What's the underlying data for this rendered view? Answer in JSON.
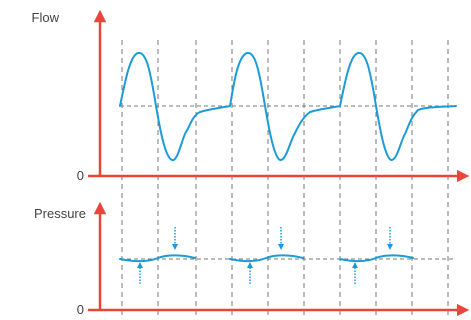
{
  "labels": {
    "flow_axis": "Flow",
    "flow_zero": "0",
    "pressure_axis": "Pressure",
    "pressure_zero": "0"
  },
  "colors": {
    "axis": "#e8463a",
    "waveform": "#1b9bd7",
    "grid": "#7a7a7a",
    "text": "#444444"
  },
  "icons": {
    "pressure_markers": "dotted-arrow-icon"
  },
  "structure": {
    "cycles": 3,
    "dashed_time_markers": 11,
    "pressure_markers_per_cycle": 2
  }
}
